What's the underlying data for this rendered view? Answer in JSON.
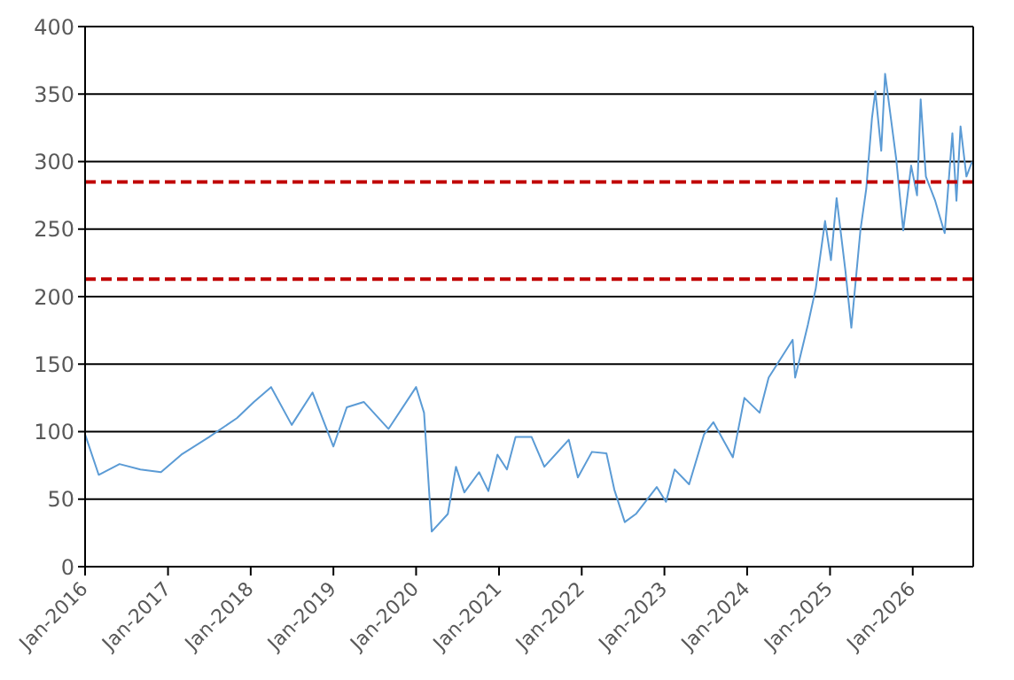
{
  "chart_data": {
    "type": "line",
    "x": [
      "2016-01-01",
      "2016-03-01",
      "2016-06-01",
      "2016-09-01",
      "2016-12-01",
      "2017-03-01",
      "2017-07-01",
      "2017-11-01",
      "2018-01-15",
      "2018-04-01",
      "2018-07-01",
      "2018-10-01",
      "2019-01-01",
      "2019-03-01",
      "2019-05-15",
      "2019-09-01",
      "2020-01-01",
      "2020-02-05",
      "2020-03-10",
      "2020-05-20",
      "2020-06-25",
      "2020-08-01",
      "2020-10-05",
      "2020-11-15",
      "2020-12-25",
      "2021-02-05",
      "2021-03-15",
      "2021-05-25",
      "2021-07-20",
      "2021-11-05",
      "2021-12-15",
      "2022-02-15",
      "2022-04-20",
      "2022-05-25",
      "2022-07-10",
      "2022-08-28",
      "2022-11-28",
      "2023-01-08",
      "2023-02-15",
      "2023-04-20",
      "2023-06-25",
      "2023-08-05",
      "2023-10-30",
      "2023-12-20",
      "2024-02-25",
      "2024-04-05",
      "2024-07-20",
      "2024-07-31",
      "2024-09-25",
      "2024-10-30",
      "2024-12-10",
      "2025-01-05",
      "2025-01-30",
      "2025-03-10",
      "2025-04-05",
      "2025-05-15",
      "2025-06-10",
      "2025-07-05",
      "2025-07-20",
      "2025-08-15",
      "2025-09-01",
      "2025-10-20",
      "2025-11-20",
      "2025-12-25",
      "2026-01-20",
      "2026-02-05",
      "2026-02-28",
      "2026-04-10",
      "2026-05-22",
      "2026-06-25",
      "2026-07-13",
      "2026-07-31",
      "2026-08-26",
      "2026-09-20"
    ],
    "series": [
      {
        "color": "#5b9bd5",
        "values": [
          98,
          68,
          76,
          72,
          70,
          83,
          96,
          110,
          122,
          133,
          105,
          129,
          89,
          118,
          122,
          102,
          133,
          114,
          26,
          39,
          74,
          55,
          70,
          56,
          83,
          72,
          96,
          96,
          74,
          94,
          66,
          85,
          84,
          57,
          33,
          39,
          59,
          48,
          72,
          61,
          98,
          107,
          81,
          125,
          114,
          140,
          168,
          140,
          179,
          206,
          256,
          227,
          273,
          219,
          177,
          249,
          280,
          332,
          352,
          308,
          365,
          302,
          249,
          297,
          275,
          346,
          289,
          271,
          247,
          321,
          271,
          326,
          289,
          300
        ]
      }
    ],
    "xlim": [
      "2016-01-01",
      "2026-09-25"
    ],
    "xticks": [
      {
        "value": "2016-01-01",
        "label": "Jan-2016"
      },
      {
        "value": "2017-01-01",
        "label": "Jan-2017"
      },
      {
        "value": "2018-01-01",
        "label": "Jan-2018"
      },
      {
        "value": "2019-01-01",
        "label": "Jan-2019"
      },
      {
        "value": "2020-01-01",
        "label": "Jan-2020"
      },
      {
        "value": "2021-01-01",
        "label": "Jan-2021"
      },
      {
        "value": "2022-01-01",
        "label": "Jan-2022"
      },
      {
        "value": "2023-01-01",
        "label": "Jan-2023"
      },
      {
        "value": "2024-01-01",
        "label": "Jan-2024"
      },
      {
        "value": "2025-01-01",
        "label": "Jan-2025"
      },
      {
        "value": "2026-01-01",
        "label": "Jan-2026"
      }
    ],
    "ylim": [
      0,
      400
    ],
    "yticks": [
      0,
      50,
      100,
      150,
      200,
      250,
      300,
      350,
      400
    ],
    "grid": "y",
    "marker": "none",
    "line_style": "solid",
    "ref_lines": [
      {
        "axis": "y",
        "value": 285,
        "color": "#c00000",
        "line_style": "dashed"
      },
      {
        "axis": "y",
        "value": 213,
        "color": "#c00000",
        "line_style": "dashed"
      }
    ]
  }
}
